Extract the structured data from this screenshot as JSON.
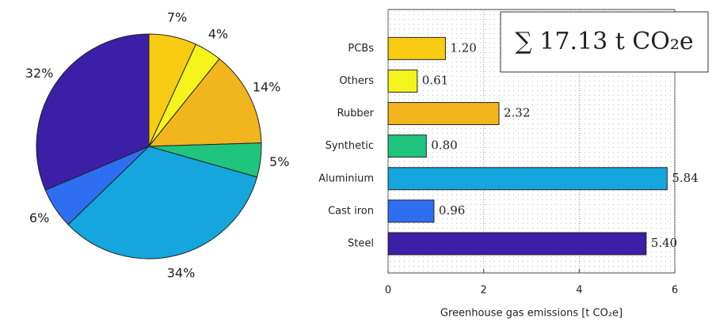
{
  "chart_data": [
    {
      "type": "pie",
      "values": [
        7,
        4,
        14,
        5,
        34,
        6,
        32
      ],
      "value_labels": [
        "7%",
        "4%",
        "14%",
        "5%",
        "34%",
        "6%",
        "32%"
      ],
      "colors": [
        "#f8cc12",
        "#f4f41c",
        "#f2b51e",
        "#1fc47d",
        "#14a6dc",
        "#2e6ff2",
        "#3b1fa6"
      ]
    },
    {
      "type": "barh",
      "categories": [
        "PCBs",
        "Others",
        "Rubber",
        "Synthetic",
        "Aluminium",
        "Cast iron",
        "Steel"
      ],
      "values": [
        1.2,
        0.61,
        2.32,
        0.8,
        5.84,
        0.96,
        5.4
      ],
      "value_labels": [
        "1.20",
        "0.61",
        "2.32",
        "0.80",
        "5.84",
        "0.96",
        "5.40"
      ],
      "colors": [
        "#f8cc12",
        "#f4f41c",
        "#f2b51e",
        "#1fc47d",
        "#14a6dc",
        "#2e6ff2",
        "#3b1fa6"
      ],
      "xlim": [
        0,
        6
      ],
      "xticks": [
        0,
        2,
        4,
        6
      ],
      "xlabel": "Greenhouse gas emissions [t CO₂e]",
      "annotation": "∑ 17.13 t CO₂e",
      "grid": true
    }
  ]
}
